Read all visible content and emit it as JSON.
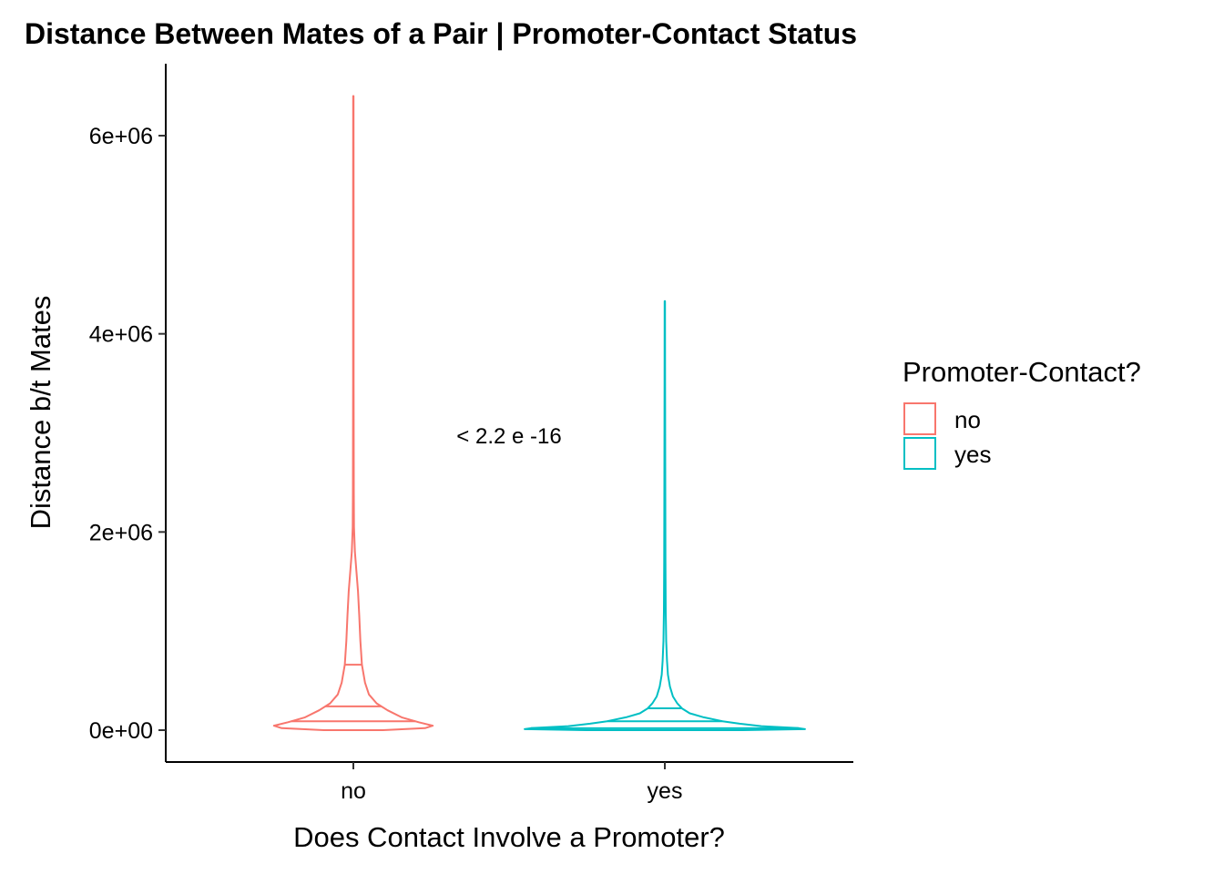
{
  "chart_data": {
    "type": "violin",
    "title": "Distance Between Mates of a Pair | Promoter-Contact Status",
    "xlabel": "Does Contact Involve a Promoter?",
    "ylabel": "Distance b/t Mates",
    "categories": [
      "no",
      "yes"
    ],
    "y_ticks": [
      {
        "value": 0,
        "label": "0e+00"
      },
      {
        "value": 2000000,
        "label": "2e+06"
      },
      {
        "value": 4000000,
        "label": "4e+06"
      },
      {
        "value": 6000000,
        "label": "6e+06"
      }
    ],
    "ylim": [
      -320000,
      6650000
    ],
    "grid": false,
    "annotation": "< 2.2 e -16",
    "legend": {
      "title": "Promoter-Contact?",
      "position": "right",
      "entries": [
        {
          "label": "no",
          "color": "#F8766D"
        },
        {
          "label": "yes",
          "color": "#00BFC4"
        }
      ]
    },
    "series": [
      {
        "name": "no",
        "color": "#F8766D",
        "min": 0,
        "max": 6400000,
        "quantiles": [
          {
            "q": 0.25,
            "value": 90000
          },
          {
            "q": 0.5,
            "value": 240000
          },
          {
            "q": 0.75,
            "value": 660000
          }
        ],
        "density_profile": [
          [
            0,
            0.19
          ],
          [
            20000,
            0.46
          ],
          [
            45000,
            0.51
          ],
          [
            80000,
            0.42
          ],
          [
            130000,
            0.31
          ],
          [
            200000,
            0.22
          ],
          [
            270000,
            0.15
          ],
          [
            360000,
            0.1
          ],
          [
            480000,
            0.075
          ],
          [
            660000,
            0.055
          ],
          [
            900000,
            0.045
          ],
          [
            1150000,
            0.038
          ],
          [
            1400000,
            0.03
          ],
          [
            1600000,
            0.02
          ],
          [
            1800000,
            0.01
          ],
          [
            2050000,
            0.004
          ],
          [
            2400000,
            0.003
          ],
          [
            3500000,
            0.002
          ],
          [
            5000000,
            0.0015
          ],
          [
            6400000,
            0.001
          ]
        ]
      },
      {
        "name": "yes",
        "color": "#00BFC4",
        "min": 0,
        "max": 4330000,
        "quantiles": [
          {
            "q": 0.25,
            "value": 20000
          },
          {
            "q": 0.5,
            "value": 90000
          },
          {
            "q": 0.75,
            "value": 220000
          }
        ],
        "density_profile": [
          [
            0,
            0.5
          ],
          [
            10000,
            0.9
          ],
          [
            20000,
            0.86
          ],
          [
            40000,
            0.62
          ],
          [
            65000,
            0.48
          ],
          [
            90000,
            0.37
          ],
          [
            130000,
            0.25
          ],
          [
            170000,
            0.16
          ],
          [
            220000,
            0.11
          ],
          [
            270000,
            0.08
          ],
          [
            340000,
            0.052
          ],
          [
            440000,
            0.033
          ],
          [
            560000,
            0.02
          ],
          [
            700000,
            0.014
          ],
          [
            900000,
            0.009
          ],
          [
            1200000,
            0.006
          ],
          [
            1700000,
            0.004
          ],
          [
            2500000,
            0.003
          ],
          [
            3500000,
            0.002
          ],
          [
            4330000,
            0.001
          ]
        ]
      }
    ]
  }
}
